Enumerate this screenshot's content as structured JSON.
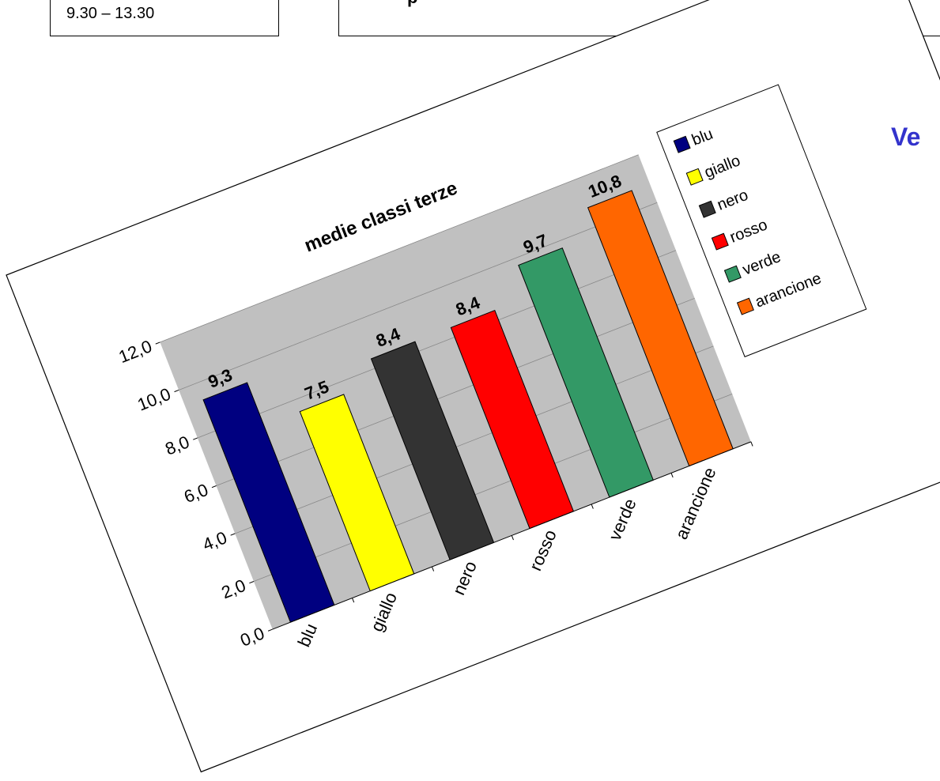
{
  "time_box": {
    "text": "9.30 – 13.30"
  },
  "top_frame": {
    "text": "p"
  },
  "heading_right": {
    "text": "Ve"
  },
  "chart_data": {
    "type": "bar",
    "title": "medie classi terze",
    "categories": [
      "blu",
      "giallo",
      "nero",
      "rosso",
      "verde",
      "arancione"
    ],
    "values": [
      9.3,
      7.5,
      8.4,
      8.4,
      9.7,
      10.8
    ],
    "value_labels": [
      "9,3",
      "7,5",
      "8,4",
      "8,4",
      "9,7",
      "10,8"
    ],
    "colors": [
      "#000080",
      "#ffff00",
      "#333333",
      "#ff0000",
      "#339966",
      "#ff6600"
    ],
    "ylim": [
      0,
      12
    ],
    "yticks": [
      "0,0",
      "2,0",
      "4,0",
      "6,0",
      "8,0",
      "10,0",
      "12,0"
    ],
    "grid": true,
    "plot_background": "#c0c0c0",
    "legend": {
      "position": "right",
      "entries": [
        "blu",
        "giallo",
        "nero",
        "rosso",
        "verde",
        "arancione"
      ]
    }
  }
}
